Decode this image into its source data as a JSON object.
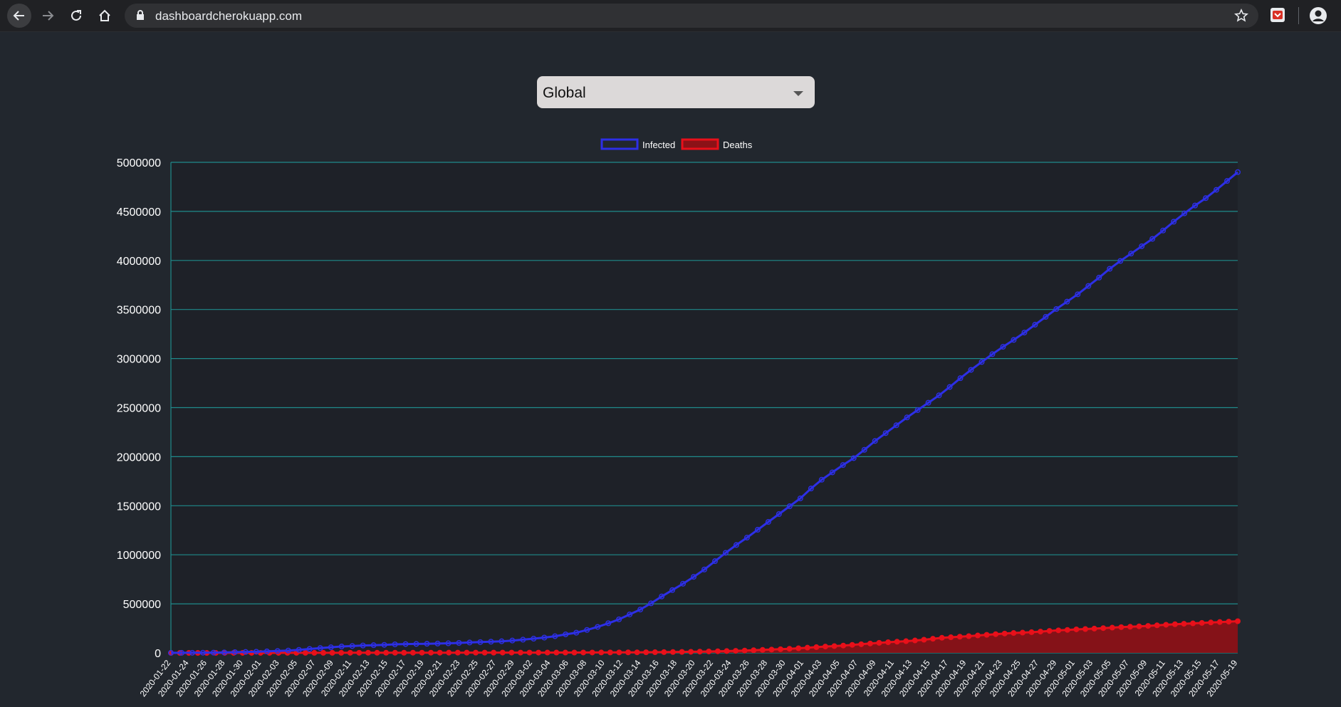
{
  "browser": {
    "url": "dashboardcherokuapp.com"
  },
  "country_select": {
    "selected": "Global"
  },
  "colors": {
    "infected": "#2d2fe6",
    "deaths": "#e8101a",
    "deaths_fill": "#8b1217",
    "grid": "#1f8a8a",
    "background": "#22272e"
  },
  "chart_data": {
    "type": "line",
    "legend": [
      "Infected",
      "Deaths"
    ],
    "legend_position": "top-center",
    "grid": true,
    "ylim": [
      0,
      5000000
    ],
    "yticks": [
      "0",
      "500000",
      "1000000",
      "1500000",
      "2000000",
      "2500000",
      "3000000",
      "3500000",
      "4000000",
      "4500000",
      "5000000"
    ],
    "xtick_labels": [
      "2020-01-22",
      "2020-01-24",
      "2020-01-26",
      "2020-01-28",
      "2020-01-30",
      "2020-02-01",
      "2020-02-03",
      "2020-02-05",
      "2020-02-07",
      "2020-02-09",
      "2020-02-11",
      "2020-02-13",
      "2020-02-15",
      "2020-02-17",
      "2020-02-19",
      "2020-02-21",
      "2020-02-23",
      "2020-02-25",
      "2020-02-27",
      "2020-02-29",
      "2020-03-02",
      "2020-03-04",
      "2020-03-06",
      "2020-03-08",
      "2020-03-10",
      "2020-03-12",
      "2020-03-14",
      "2020-03-16",
      "2020-03-18",
      "2020-03-20",
      "2020-03-22",
      "2020-03-24",
      "2020-03-26",
      "2020-03-28",
      "2020-03-30",
      "2020-04-01",
      "2020-04-03",
      "2020-04-05",
      "2020-04-07",
      "2020-04-09",
      "2020-04-11",
      "2020-04-13",
      "2020-04-15",
      "2020-04-17",
      "2020-04-19",
      "2020-04-21",
      "2020-04-23",
      "2020-04-25",
      "2020-04-27",
      "2020-04-29",
      "2020-05-01",
      "2020-05-03",
      "2020-05-05",
      "2020-05-07",
      "2020-05-09",
      "2020-05-11",
      "2020-05-13",
      "2020-05-15",
      "2020-05-17",
      "2020-05-19"
    ],
    "series": [
      {
        "name": "Infected",
        "fill": false,
        "values": [
          555,
          845,
          1320,
          2010,
          2790,
          4560,
          7400,
          9800,
          11950,
          15000,
          19500,
          24000,
          31200,
          40000,
          49000,
          57000,
          65000,
          70000,
          75200,
          78500,
          82000,
          87000,
          90000,
          91500,
          93000,
          95000,
          97800,
          101500,
          105800,
          110000,
          114200,
          118500,
          125800,
          135000,
          145000,
          156000,
          170000,
          189000,
          206000,
          234000,
          265000,
          302000,
          342000,
          392000,
          442000,
          505000,
          575000,
          640000,
          705000,
          775000,
          850000,
          935000,
          1020000,
          1100000,
          1175000,
          1255000,
          1335000,
          1415000,
          1495000,
          1575000,
          1675000,
          1765000,
          1840000,
          1915000,
          1985000,
          2070000,
          2160000,
          2240000,
          2320000,
          2400000,
          2475000,
          2550000,
          2625000,
          2710000,
          2800000,
          2885000,
          2965000,
          3045000,
          3120000,
          3190000,
          3265000,
          3345000,
          3425000,
          3505000,
          3580000,
          3655000,
          3740000,
          3825000,
          3915000,
          3995000,
          4070000,
          4145000,
          4220000,
          4305000,
          4395000,
          4480000,
          4560000,
          4635000,
          4720000,
          4810000,
          4900000
        ]
      },
      {
        "name": "Deaths",
        "fill": true,
        "values": [
          17,
          18,
          26,
          42,
          56,
          82,
          131,
          133,
          171,
          213,
          259,
          362,
          426,
          492,
          564,
          634,
          719,
          806,
          906,
          1013,
          1113,
          1118,
          1371,
          1523,
          1666,
          1770,
          1868,
          2007,
          2122,
          2247,
          2251,
          2458,
          2469,
          2629,
          2708,
          2770,
          2814,
          2872,
          2941,
          2996,
          3085,
          3160,
          3254,
          3348,
          3460,
          3558,
          3803,
          3996,
          4262,
          4615,
          4720,
          5404,
          5819,
          6440,
          7126,
          7905,
          8733,
          9867,
          11299,
          12973,
          14651,
          16505,
          18625,
          21181,
          23970,
          27198,
          30652,
          33925,
          37582,
          42107,
          47180,
          53190,
          58787,
          64606,
          69374,
          74565,
          81865,
          88338,
          95455,
          102525,
          108503,
          114090,
          119482,
          126605,
          134169,
          143800,
          153822,
          159510,
          165044,
          170424,
          177552,
          184217,
          190858,
          197159,
          202865,
          206569,
          211167,
          217153,
          224225,
          229932,
          234393,
          239602,
          243000,
          247500,
          252500,
          257500,
          262500,
          266500,
          270500,
          275000,
          281000,
          287000,
          292000,
          297000,
          301000,
          305500,
          310000,
          314500,
          318800,
          323000
        ]
      }
    ]
  }
}
